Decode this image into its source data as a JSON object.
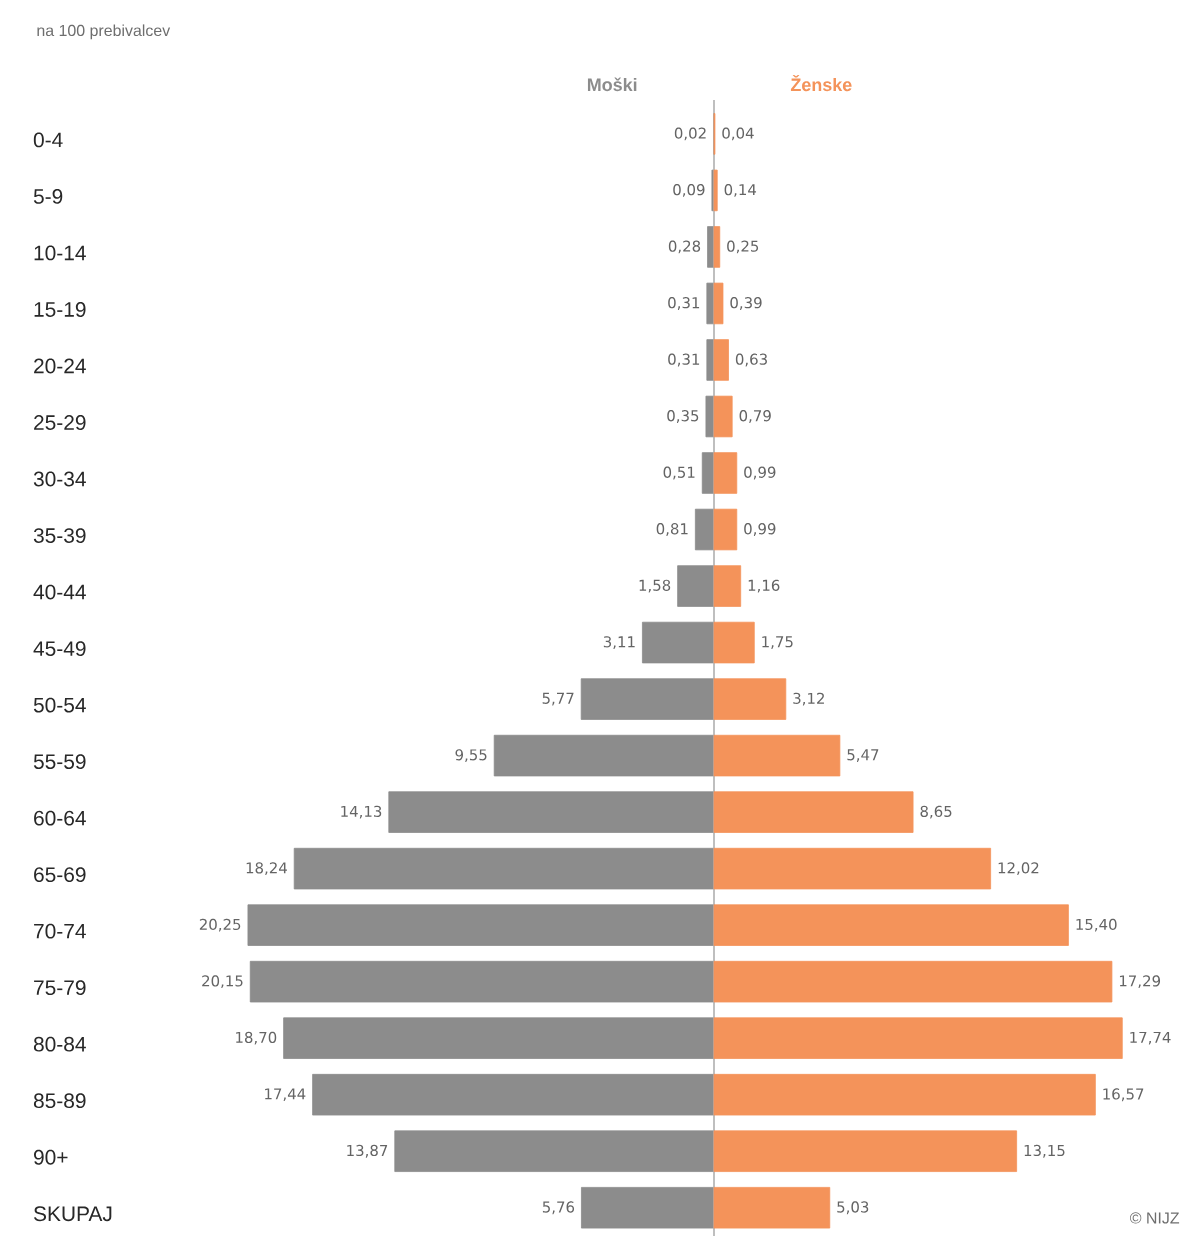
{
  "chart_data": [
    {
      "type": "bar",
      "orientation": "horizontal",
      "title": "na 100 prebivalcev",
      "categories": [
        "0-4",
        "5-9",
        "10-14",
        "15-19",
        "20-24",
        "25-29",
        "30-34",
        "35-39",
        "40-44",
        "45-49",
        "50-54",
        "55-59",
        "60-64",
        "65-69",
        "70-74",
        "75-79",
        "80-84",
        "85-89",
        "90+",
        "SKUPAJ"
      ],
      "series": [
        {
          "name": "Moški",
          "color": "#8c8c8c",
          "values": [
            0.02,
            0.09,
            0.28,
            0.31,
            0.31,
            0.35,
            0.51,
            0.81,
            1.58,
            3.11,
            5.77,
            9.55,
            14.13,
            18.24,
            20.25,
            20.15,
            18.7,
            17.44,
            13.87,
            5.76
          ],
          "value_labels": [
            "0,02",
            "0,09",
            "0,28",
            "0,31",
            "0,31",
            "0,35",
            "0,51",
            "0,81",
            "1,58",
            "3,11",
            "5,77",
            "9,55",
            "14,13",
            "18,24",
            "20,25",
            "20,15",
            "18,70",
            "17,44",
            "13,87",
            "5,76"
          ]
        }
      ],
      "tick_labels": "y"
    },
    {
      "type": "bar",
      "orientation": "horizontal",
      "categories": [
        null,
        null,
        null,
        null,
        null,
        null,
        null,
        null,
        null,
        null,
        null,
        null,
        null,
        null,
        null,
        null,
        null,
        null,
        null,
        null
      ],
      "series": [
        {
          "name": "Ženske",
          "color": "#f4935a",
          "values": [
            0.04,
            0.14,
            0.25,
            0.39,
            0.63,
            0.79,
            0.99,
            0.99,
            1.16,
            1.75,
            3.12,
            5.47,
            8.65,
            12.02,
            15.4,
            17.29,
            17.74,
            16.57,
            13.15,
            5.03
          ],
          "value_labels": [
            "0,04",
            "0,14",
            "0,25",
            "0,39",
            "0,63",
            "0,79",
            "0,99",
            "0,99",
            "1,16",
            "1,75",
            "3,12",
            "5,47",
            "8,65",
            "12,02",
            "15,40",
            "17,29",
            "17,74",
            "16,57",
            "13,15",
            "5,03"
          ]
        }
      ],
      "tick_labels": false,
      "annotations": [
        "© NIJZ"
      ]
    }
  ]
}
